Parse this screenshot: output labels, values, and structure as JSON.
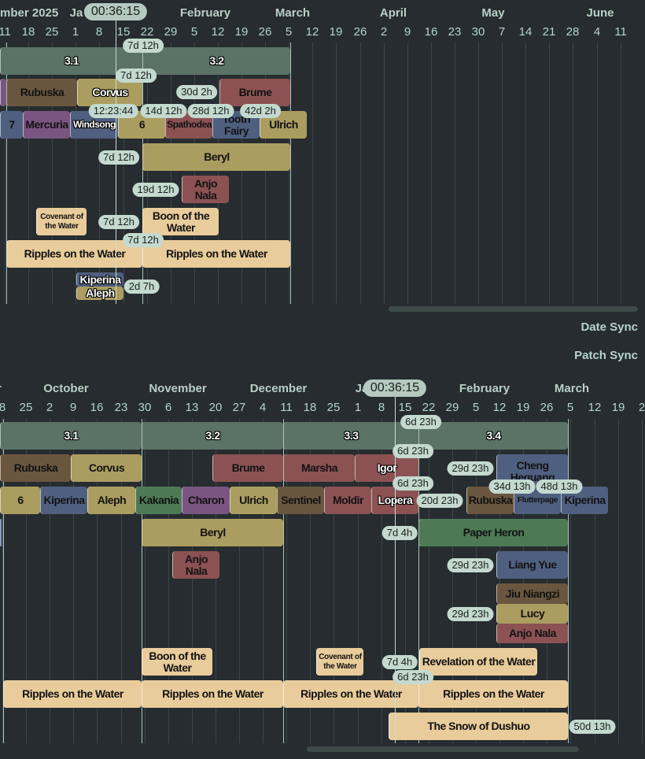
{
  "palette": {
    "patch": "#5b7267",
    "tan": "#ab9d60",
    "brown": "#6a563f",
    "red": "#8c5253",
    "blue": "#4f5f80",
    "purple": "#7a5582",
    "green": "#4d7a55",
    "cream": "#e9cc9b"
  },
  "sync": {
    "date_sync": "Date Sync",
    "patch_sync": "Patch Sync"
  },
  "top": {
    "timer": "00:36:15",
    "months": [
      "mber 2025",
      "Ja",
      "February",
      "March",
      "April",
      "May",
      "June"
    ],
    "days": [
      "11",
      "18",
      "25",
      "1",
      "8",
      "15",
      "22",
      "29",
      "5",
      "12",
      "19",
      "26",
      "5",
      "12",
      "19",
      "26",
      "2",
      "9",
      "16",
      "23",
      "30",
      "7",
      "14",
      "21",
      "28",
      "4",
      "11"
    ],
    "blocks": [
      {
        "label": "3.1",
        "color": "patch"
      },
      {
        "label": "3.2",
        "color": "patch"
      },
      {
        "label": "",
        "color": "purple"
      },
      {
        "label": "Rubuska",
        "color": "brown"
      },
      {
        "label": "Corvus",
        "color": "tan"
      },
      {
        "label": "Brume",
        "color": "red"
      },
      {
        "label": "7",
        "color": "blue"
      },
      {
        "label": "Mercuria",
        "color": "purple"
      },
      {
        "label": "Windsong",
        "color": "blue"
      },
      {
        "label": "6",
        "color": "tan"
      },
      {
        "label": "Spathodea",
        "color": "red"
      },
      {
        "label": "Tooth Fairy",
        "color": "blue"
      },
      {
        "label": "Ulrich",
        "color": "tan"
      },
      {
        "label": "Beryl",
        "color": "tan"
      },
      {
        "label": "Anjo Nala",
        "color": "red"
      },
      {
        "label": "Covenant of the Water",
        "color": "cream"
      },
      {
        "label": "Boon of the Water",
        "color": "cream"
      },
      {
        "label": "Ripples on the Water",
        "color": "cream"
      },
      {
        "label": "Ripples on the Water",
        "color": "cream"
      },
      {
        "label": "Kiperina",
        "color": "blue"
      },
      {
        "label": "Aleph",
        "color": "tan"
      }
    ],
    "pills": [
      "7d 12h",
      "7d 12h",
      "30d 2h",
      "12:23:44",
      "14d 12h",
      "28d 12h",
      "42d 2h",
      "7d 12h",
      "19d 12h",
      "7d 12h",
      "7d 12h",
      "2d 7h"
    ]
  },
  "bottom": {
    "timer": "00:36:15",
    "months": [
      "r",
      "October",
      "November",
      "December",
      "Ja",
      "February",
      "March"
    ],
    "days": [
      "8",
      "25",
      "2",
      "9",
      "16",
      "23",
      "30",
      "6",
      "13",
      "20",
      "27",
      "4",
      "11",
      "18",
      "25",
      "1",
      "8",
      "15",
      "22",
      "29",
      "5",
      "12",
      "19",
      "26",
      "5",
      "12",
      "19",
      "2"
    ],
    "blocks": [
      {
        "label": "3.1",
        "color": "patch"
      },
      {
        "label": "3.2",
        "color": "patch"
      },
      {
        "label": "3.3",
        "color": "patch"
      },
      {
        "label": "3.4",
        "color": "patch"
      },
      {
        "label": "Rubuska",
        "color": "brown"
      },
      {
        "label": "Corvus",
        "color": "tan"
      },
      {
        "label": "Brume",
        "color": "red"
      },
      {
        "label": "Marsha",
        "color": "red"
      },
      {
        "label": "Igor",
        "color": "red"
      },
      {
        "label": "Cheng Heguang",
        "color": "blue"
      },
      {
        "label": "6",
        "color": "tan"
      },
      {
        "label": "Kiperina",
        "color": "blue"
      },
      {
        "label": "Aleph",
        "color": "tan"
      },
      {
        "label": "Kakania",
        "color": "green"
      },
      {
        "label": "Charon",
        "color": "purple"
      },
      {
        "label": "Ulrich",
        "color": "tan"
      },
      {
        "label": "Sentinel",
        "color": "brown"
      },
      {
        "label": "Moldir",
        "color": "red"
      },
      {
        "label": "Lopera",
        "color": "red"
      },
      {
        "label": "Rubuska",
        "color": "brown"
      },
      {
        "label": "Flutterpage",
        "color": "blue"
      },
      {
        "label": "Kiperina",
        "color": "blue"
      },
      {
        "label": "",
        "color": "blue"
      },
      {
        "label": "Beryl",
        "color": "tan"
      },
      {
        "label": "Paper Heron",
        "color": "green"
      },
      {
        "label": "Anjo Nala",
        "color": "red"
      },
      {
        "label": "Liang Yue",
        "color": "blue"
      },
      {
        "label": "Jiu Niangzi",
        "color": "brown"
      },
      {
        "label": "Lucy",
        "color": "tan"
      },
      {
        "label": "Anjo Nala",
        "color": "red"
      },
      {
        "label": "Boon of the Water",
        "color": "cream"
      },
      {
        "label": "Covenant of the Water",
        "color": "cream"
      },
      {
        "label": "Revelation of the Water",
        "color": "cream"
      },
      {
        "label": "Ripples on the Water",
        "color": "cream"
      },
      {
        "label": "Ripples on the Water",
        "color": "cream"
      },
      {
        "label": "Ripples on the Water",
        "color": "cream"
      },
      {
        "label": "Ripples on the Water",
        "color": "cream"
      },
      {
        "label": "The Snow of Dushuo",
        "color": "cream"
      }
    ],
    "pills": [
      "6d 23h",
      "6d 23h",
      "29d 23h",
      "6d 23h",
      "20d 23h",
      "34d 13h",
      "48d 13h",
      "7d 4h",
      "29d 23h",
      "29d 23h",
      "7d 4h",
      "6d 23h",
      "50d 13h"
    ]
  }
}
